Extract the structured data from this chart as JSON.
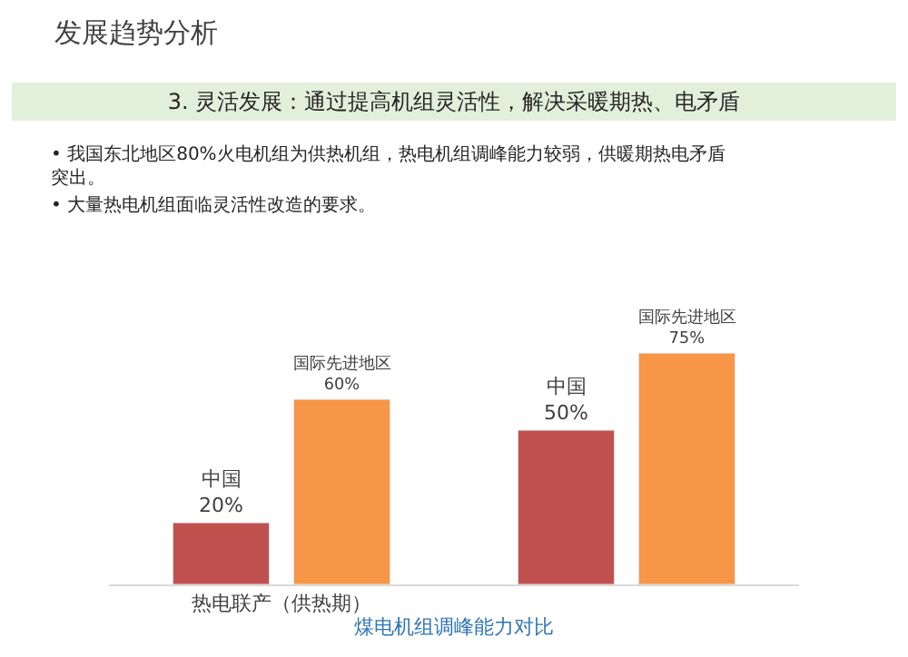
{
  "chart_data": {
    "type": "bar",
    "title": "发展趋势分析",
    "subtitle": "3. 灵活发展：通过提高机组灵活性，解决采暖期热、电矛盾",
    "annotations": [
      "• 我国东北地区80%火电机组为供热机组，热电机组调峰能力较弱，供暖期热电矛盾突出。",
      "• 大量热电机组面临灵活性改造的要求。"
    ],
    "xlabel": "煤电机组调峰能力对比",
    "categories": [
      "热电联产（供热期）",
      null
    ],
    "series": [
      {
        "name": "中国",
        "color": "#c0504d",
        "values": [
          20,
          50
        ],
        "value_labels": [
          "20%",
          "50%"
        ]
      },
      {
        "name": "国际先进地区",
        "color": "#f79646",
        "values": [
          60,
          75
        ],
        "value_labels": [
          "60%",
          "75%"
        ]
      }
    ],
    "legend": false
  }
}
